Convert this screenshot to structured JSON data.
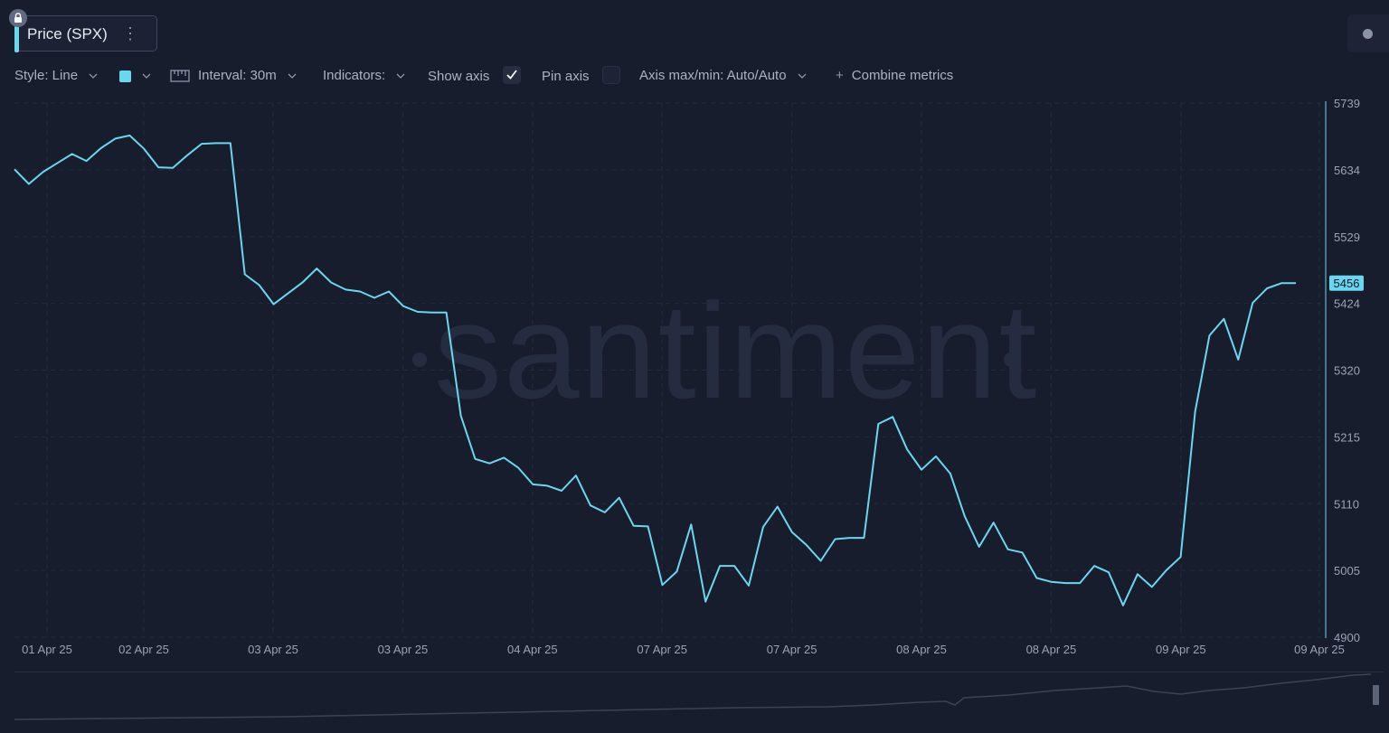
{
  "metric": {
    "title": "Price (SPX)"
  },
  "toolbar": {
    "style_label": "Style: Line",
    "interval_label": "Interval: 30m",
    "indicators_label": "Indicators:",
    "show_axis_label": "Show axis",
    "show_axis_checked": true,
    "pin_axis_label": "Pin axis",
    "pin_axis_checked": false,
    "axis_maxmin_label": "Axis max/min: Auto/Auto",
    "combine_label": "Combine metrics",
    "line_color": "#68d7f0"
  },
  "watermark": "santiment",
  "chart_data": {
    "type": "line",
    "ylim": [
      4900,
      5739
    ],
    "y_ticks": [
      "5739",
      "5634",
      "5529",
      "5424",
      "5320",
      "5215",
      "5110",
      "5005",
      "4900"
    ],
    "x_ticks": [
      "01 Apr 25",
      "02 Apr 25",
      "03 Apr 25",
      "03 Apr 25",
      "04 Apr 25",
      "07 Apr 25",
      "07 Apr 25",
      "08 Apr 25",
      "08 Apr 25",
      "09 Apr 25",
      "09 Apr 25"
    ],
    "current_value": "5456",
    "color": "#68d7f0",
    "series": [
      {
        "values": [
          5635,
          5612,
          5631,
          5645,
          5659,
          5648,
          5668,
          5683,
          5688,
          5667,
          5638,
          5637,
          5657,
          5675,
          5676,
          5676,
          5470,
          5453,
          5423,
          5440,
          5457,
          5479,
          5457,
          5446,
          5443,
          5433,
          5443,
          5420,
          5411,
          5410,
          5410,
          5248,
          5180,
          5173,
          5182,
          5166,
          5140,
          5138,
          5130,
          5154,
          5107,
          5096,
          5119,
          5075,
          5074,
          4982,
          5003,
          5077,
          4956,
          5012,
          5012,
          4981,
          5073,
          5105,
          5065,
          5045,
          5020,
          5054,
          5056,
          5056,
          5235,
          5246,
          5195,
          5163,
          5184,
          5157,
          5090,
          5042,
          5080,
          5038,
          5033,
          4993,
          4987,
          4985,
          4985,
          5012,
          5002,
          4950,
          4999,
          4979,
          5005,
          5026,
          5254,
          5374,
          5400,
          5336,
          5425,
          5448,
          5456,
          5456
        ]
      }
    ]
  }
}
